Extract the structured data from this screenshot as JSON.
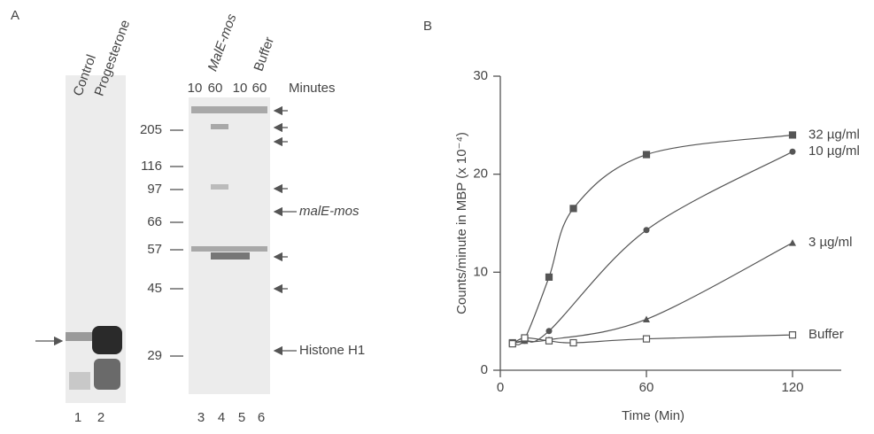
{
  "panel_a": {
    "label": "A",
    "lanes_left": [
      "Control",
      "Progesterone"
    ],
    "lanes_right": [
      "MalE-mos",
      "Buffer"
    ],
    "times": [
      "10",
      "60",
      "10",
      "60"
    ],
    "time_unit": "Minutes",
    "markers": [
      205,
      116,
      97,
      66,
      57,
      45,
      29
    ],
    "annotations": [
      "malE-mos",
      "Histone H1"
    ],
    "lane_numbers": [
      1,
      2,
      3,
      4,
      5,
      6
    ]
  },
  "chart_data": {
    "type": "line",
    "label": "B",
    "x_label": "Time (Min)",
    "y_label": "Counts/minute in MBP (x 10⁻⁴)",
    "xlim": [
      0,
      140
    ],
    "xticks": [
      0,
      60,
      120
    ],
    "ylim": [
      0,
      30
    ],
    "yticks": [
      0,
      10,
      20,
      30
    ],
    "series": [
      {
        "name": "32 µg/ml",
        "color": "#555555",
        "marker": "square",
        "x": [
          5,
          10,
          20,
          30,
          60,
          120
        ],
        "values": [
          2.8,
          3.2,
          9.5,
          16.5,
          22,
          24
        ]
      },
      {
        "name": "10 µg/ml",
        "color": "#555555",
        "marker": "circle",
        "x": [
          5,
          10,
          20,
          60,
          120
        ],
        "values": [
          2.8,
          3.0,
          4,
          14.3,
          22.3
        ]
      },
      {
        "name": "3 µg/ml",
        "color": "#555555",
        "marker": "triangle",
        "x": [
          5,
          10,
          20,
          60,
          120
        ],
        "values": [
          2.8,
          3.0,
          3.1,
          5.2,
          13
        ]
      },
      {
        "name": "Buffer",
        "color": "#555555",
        "marker": "open-square",
        "x": [
          5,
          10,
          20,
          30,
          60,
          120
        ],
        "values": [
          2.7,
          3.3,
          3.0,
          2.8,
          3.2,
          3.6
        ]
      }
    ]
  }
}
